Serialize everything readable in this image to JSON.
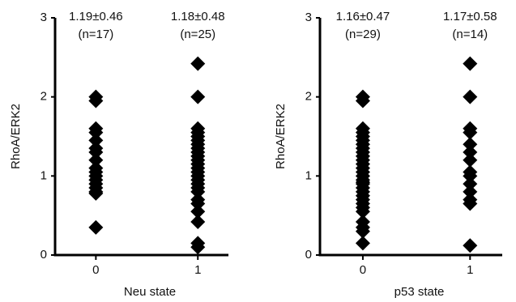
{
  "chart_data": [
    {
      "type": "scatter",
      "xlabel": "Neu state",
      "ylabel": "RhoA/ERK2",
      "annotations": [
        "1.19±0.46",
        "(n=17)",
        "1.18±0.48",
        "(n=25)"
      ],
      "xlim": [
        -0.4,
        1.3
      ],
      "ylim": [
        0,
        3
      ],
      "xticks": [
        0,
        1
      ],
      "yticks": [
        0,
        1,
        2,
        3
      ],
      "color": "#000000",
      "series": [
        {
          "x": [
            0,
            0,
            0,
            0,
            0,
            0,
            0,
            0,
            0,
            0,
            0,
            0,
            0,
            0,
            0,
            0,
            0
          ],
          "values": [
            2.0,
            1.95,
            1.6,
            1.55,
            1.45,
            1.35,
            1.3,
            1.2,
            1.1,
            1.05,
            1.0,
            0.95,
            0.9,
            0.85,
            0.8,
            0.78,
            0.35
          ]
        },
        {
          "x": [
            1,
            1,
            1,
            1,
            1,
            1,
            1,
            1,
            1,
            1,
            1,
            1,
            1,
            1,
            1,
            1,
            1,
            1,
            1,
            1,
            1,
            1,
            1,
            1,
            1
          ],
          "values": [
            2.42,
            2.0,
            1.6,
            1.55,
            1.5,
            1.45,
            1.4,
            1.35,
            1.3,
            1.25,
            1.2,
            1.15,
            1.1,
            1.05,
            1.0,
            0.95,
            0.9,
            0.85,
            0.8,
            0.7,
            0.65,
            0.55,
            0.42,
            0.15,
            0.1
          ]
        }
      ]
    },
    {
      "type": "scatter",
      "xlabel": "p53 state",
      "ylabel": "RhoA/ERK2",
      "annotations": [
        "1.16±0.47",
        "(n=29)",
        "1.17±0.58",
        "(n=14)"
      ],
      "xlim": [
        -0.4,
        1.3
      ],
      "ylim": [
        0,
        3
      ],
      "xticks": [
        0,
        1
      ],
      "yticks": [
        0,
        1,
        2,
        3
      ],
      "color": "#000000",
      "series": [
        {
          "x": [
            0,
            0,
            0,
            0,
            0,
            0,
            0,
            0,
            0,
            0,
            0,
            0,
            0,
            0,
            0,
            0,
            0,
            0,
            0,
            0,
            0,
            0,
            0,
            0,
            0,
            0,
            0,
            0,
            0
          ],
          "values": [
            2.0,
            1.95,
            1.6,
            1.55,
            1.5,
            1.45,
            1.4,
            1.35,
            1.3,
            1.25,
            1.2,
            1.15,
            1.1,
            1.05,
            1.0,
            0.95,
            0.92,
            0.9,
            0.85,
            0.8,
            0.75,
            0.7,
            0.65,
            0.6,
            0.55,
            0.42,
            0.35,
            0.3,
            0.15
          ]
        },
        {
          "x": [
            1,
            1,
            1,
            1,
            1,
            1,
            1,
            1,
            1,
            1,
            1,
            1,
            1,
            1
          ],
          "values": [
            2.42,
            2.0,
            1.6,
            1.55,
            1.4,
            1.3,
            1.2,
            1.05,
            1.0,
            0.9,
            0.8,
            0.7,
            0.65,
            0.12
          ]
        }
      ]
    }
  ]
}
